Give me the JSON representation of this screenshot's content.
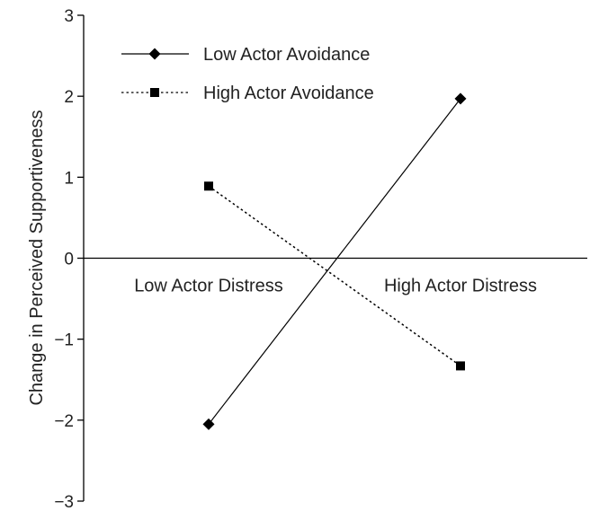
{
  "chart_data": {
    "type": "line",
    "title": "",
    "xlabel": "",
    "ylabel": "Change in Perceived Supportiveness",
    "ylim": [
      -3,
      3
    ],
    "yticks": [
      3,
      2,
      1,
      0,
      -1,
      -2,
      -3
    ],
    "ytick_labels": [
      "3",
      "2",
      "1",
      "0",
      "−1",
      "−2",
      "−3"
    ],
    "categories": [
      "Low Actor Distress",
      "High Actor Distress"
    ],
    "grid": false,
    "legend_position": "top-left",
    "series": [
      {
        "name": "Low Actor Avoidance",
        "values": [
          -2.05,
          1.97
        ],
        "line_style": "solid",
        "marker": "diamond",
        "color": "#000000"
      },
      {
        "name": "High Actor Avoidance",
        "values": [
          0.89,
          -1.33
        ],
        "line_style": "dotted",
        "marker": "square",
        "color": "#000000"
      }
    ]
  }
}
